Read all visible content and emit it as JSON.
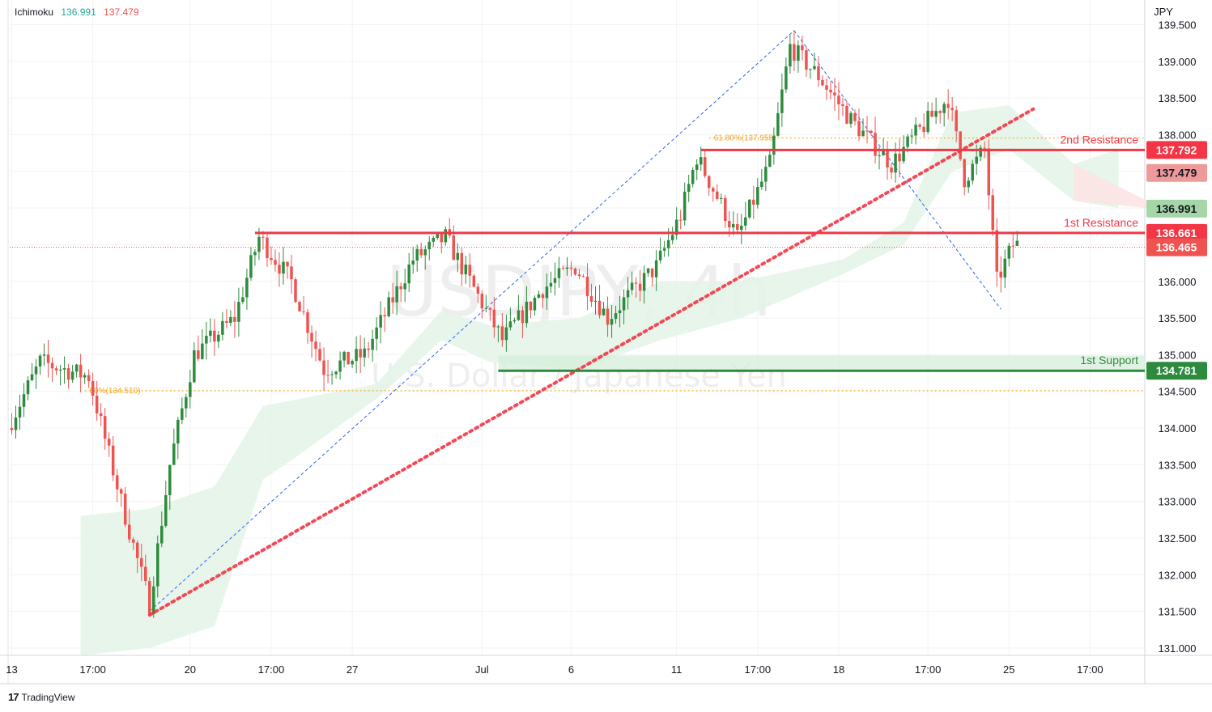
{
  "indicator": {
    "name": "Ichimoku",
    "value_1": "136.991",
    "value_2": "137.479"
  },
  "currency": "JPY",
  "watermark": {
    "symbol": "USDJPY, 4h",
    "description": "U.S. Dollar / Japanese Yen"
  },
  "branding": {
    "name": "TradingView"
  },
  "colors": {
    "bull": "#26a69a",
    "bull_candle": "#2e8b3e",
    "bear": "#ef5350",
    "resistance": "#f23645",
    "support": "#2e8b3e",
    "fib": "#f5a623",
    "trend_blue": "#2962ff",
    "cloud_green": "#e3f3e6",
    "cloud_red": "#fbe4e4"
  },
  "chart_data": {
    "type": "candlestick",
    "title": "",
    "ylim": [
      130.9,
      139.55
    ],
    "y_ticks": [
      "139.500",
      "139.000",
      "138.500",
      "138.000",
      "137.500",
      "137.000",
      "136.500",
      "136.000",
      "135.500",
      "135.000",
      "134.500",
      "134.000",
      "133.500",
      "133.000",
      "132.500",
      "132.000",
      "131.500",
      "131.000"
    ],
    "x_labels": [
      "13",
      "17:00",
      "20",
      "17:00",
      "27",
      "Jul",
      "6",
      "11",
      "17:00",
      "18",
      "17:00",
      "25",
      "17:00"
    ],
    "x_label_bars": [
      0,
      20,
      44,
      64,
      84,
      116,
      138,
      164,
      184,
      204,
      226,
      246,
      266
    ],
    "bars_visible": 280,
    "levels": [
      {
        "name": "2nd Resistance",
        "price": 137.792,
        "color": "#f23645",
        "start_bar": 170
      },
      {
        "name": "1st Resistance",
        "price": 136.661,
        "color": "#f23645",
        "start_bar": 60
      },
      {
        "name": "1st Support",
        "price": 134.781,
        "color": "#2e8b3e",
        "start_bar": 120
      }
    ],
    "support_zone": [
      134.781,
      134.99
    ],
    "price_labels": [
      {
        "text": "137.792",
        "price": 137.792,
        "kind": "resistance"
      },
      {
        "text": "137.479",
        "price": 137.479,
        "kind": "span_b"
      },
      {
        "text": "136.991",
        "price": 136.991,
        "kind": "span_a"
      },
      {
        "text": "136.661",
        "price": 136.661,
        "kind": "resistance"
      },
      {
        "text": "136.465",
        "price": 136.465,
        "kind": "last"
      }
    ],
    "fib_levels": [
      {
        "label": "61.80%(137.955)",
        "price": 137.955,
        "start_bar": 172
      },
      {
        "label": "80%(134.510)",
        "price": 134.51,
        "start_bar": 18
      }
    ],
    "trend_line": {
      "from": {
        "bar": 34,
        "price": 131.45
      },
      "to": {
        "bar": 252,
        "price": 138.35
      }
    },
    "swing_lines": [
      {
        "from": {
          "bar": 34,
          "price": 131.5
        },
        "to": {
          "bar": 193,
          "price": 139.42
        }
      },
      {
        "from": {
          "bar": 193,
          "price": 139.42
        },
        "to": {
          "bar": 244,
          "price": 135.62
        }
      }
    ],
    "anchors": [
      {
        "bar": 0,
        "price": 134.0
      },
      {
        "bar": 8,
        "price": 134.9
      },
      {
        "bar": 20,
        "price": 134.7
      },
      {
        "bar": 28,
        "price": 133.0
      },
      {
        "bar": 35,
        "price": 131.6
      },
      {
        "bar": 40,
        "price": 133.5
      },
      {
        "bar": 46,
        "price": 135.0
      },
      {
        "bar": 56,
        "price": 135.5
      },
      {
        "bar": 62,
        "price": 136.6
      },
      {
        "bar": 70,
        "price": 136.0
      },
      {
        "bar": 78,
        "price": 134.8
      },
      {
        "bar": 88,
        "price": 135.0
      },
      {
        "bar": 100,
        "price": 136.3
      },
      {
        "bar": 108,
        "price": 136.6
      },
      {
        "bar": 114,
        "price": 136.0
      },
      {
        "bar": 122,
        "price": 135.2
      },
      {
        "bar": 132,
        "price": 135.9
      },
      {
        "bar": 140,
        "price": 136.2
      },
      {
        "bar": 148,
        "price": 135.5
      },
      {
        "bar": 160,
        "price": 136.2
      },
      {
        "bar": 166,
        "price": 136.9
      },
      {
        "bar": 170,
        "price": 137.7
      },
      {
        "bar": 180,
        "price": 136.6
      },
      {
        "bar": 188,
        "price": 137.6
      },
      {
        "bar": 193,
        "price": 139.2
      },
      {
        "bar": 200,
        "price": 138.8
      },
      {
        "bar": 208,
        "price": 138.2
      },
      {
        "bar": 218,
        "price": 137.6
      },
      {
        "bar": 224,
        "price": 138.0
      },
      {
        "bar": 232,
        "price": 138.5
      },
      {
        "bar": 236,
        "price": 137.4
      },
      {
        "bar": 241,
        "price": 137.8
      },
      {
        "bar": 244,
        "price": 136.0
      },
      {
        "bar": 248,
        "price": 136.5
      }
    ],
    "cloud": {
      "top": [
        {
          "bar": 17,
          "price": 132.8
        },
        {
          "bar": 34,
          "price": 132.9
        },
        {
          "bar": 50,
          "price": 133.2
        },
        {
          "bar": 62,
          "price": 134.3
        },
        {
          "bar": 90,
          "price": 134.6
        },
        {
          "bar": 106,
          "price": 135.6
        },
        {
          "bar": 118,
          "price": 135.4
        },
        {
          "bar": 140,
          "price": 135.5
        },
        {
          "bar": 160,
          "price": 136.0
        },
        {
          "bar": 180,
          "price": 136.0
        },
        {
          "bar": 205,
          "price": 136.3
        },
        {
          "bar": 220,
          "price": 136.8
        },
        {
          "bar": 232,
          "price": 138.3
        },
        {
          "bar": 246,
          "price": 138.4
        },
        {
          "bar": 262,
          "price": 137.6
        },
        {
          "bar": 273,
          "price": 137.8
        }
      ],
      "bottom": [
        {
          "bar": 17,
          "price": 130.9
        },
        {
          "bar": 34,
          "price": 131.0
        },
        {
          "bar": 50,
          "price": 131.3
        },
        {
          "bar": 62,
          "price": 133.3
        },
        {
          "bar": 70,
          "price": 133.6
        },
        {
          "bar": 90,
          "price": 134.4
        },
        {
          "bar": 106,
          "price": 135.2
        },
        {
          "bar": 118,
          "price": 134.9
        },
        {
          "bar": 140,
          "price": 134.8
        },
        {
          "bar": 160,
          "price": 135.2
        },
        {
          "bar": 180,
          "price": 135.5
        },
        {
          "bar": 205,
          "price": 136.1
        },
        {
          "bar": 220,
          "price": 136.5
        },
        {
          "bar": 232,
          "price": 137.5
        },
        {
          "bar": 246,
          "price": 137.8
        },
        {
          "bar": 262,
          "price": 137.1
        },
        {
          "bar": 273,
          "price": 137.0
        }
      ]
    }
  }
}
